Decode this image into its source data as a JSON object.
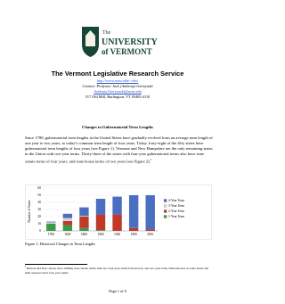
{
  "logo": {
    "line1": "The",
    "line2": "UNIVERSITY",
    "line3": "of VERMONT"
  },
  "header": {
    "title": "The Vermont Legislative Research Service",
    "url": "http://www.uvm.edu/~vlrs/",
    "contact": "Contact: Professor Jack (Anthony) Gierzynski",
    "email": "Anthony.Gierzynski@uvm.edu",
    "address": "517 Old Mill, Burlington, VT 05405-4110"
  },
  "heading": "Changes in Gubernatorial Term Lengths",
  "paragraph": "Since 1780, gubernatorial term lengths in the United States have gradually evolved from an average term length of one year to two years, to today's common term length of four years. Today, forty-eight of the fifty states have gubernatorial term lengths of four years (see Figure 1). Vermont and New Hampshire are the only remaining states in the Union with two-year terms. Thirty-three of the states with four-year gubernatorial terms also have state senate terms of four years, and state house terms of two years (see Figure 2).",
  "paragraph_note": "1",
  "caption": "Figure 1: Historical Changes in Term Lengths",
  "footnote": {
    "marker": "1",
    "text": "Illinois and New Jersey have shifting state senate terms with two four-year terms followed by one two-year term, Nebraska has no state house but their senators have four year terms."
  },
  "page_number": "Page 1 of 6",
  "chart_data": {
    "type": "stacked_bar",
    "y_label": "Number of States",
    "categories": [
      "1780",
      "1820",
      "1860",
      "1900",
      "1940",
      "1980",
      "2016"
    ],
    "series": [
      {
        "name": "4-Year Term",
        "color": "#4a6fc0",
        "values": [
          1,
          6,
          12,
          22,
          25,
          46,
          48
        ]
      },
      {
        "name": "3-Year Term",
        "color": "#d6d6d6",
        "values": [
          2,
          4,
          1,
          0,
          0,
          0,
          0
        ]
      },
      {
        "name": "2-Year Term",
        "color": "#c0392b",
        "values": [
          0,
          6,
          16,
          22,
          23,
          4,
          2
        ]
      },
      {
        "name": "1-Year Term",
        "color": "#3a9a4a",
        "values": [
          10,
          8,
          4,
          1,
          0,
          0,
          0
        ]
      }
    ],
    "ylim": [
      0,
      60
    ],
    "yticks": [
      0,
      10,
      20,
      30,
      40,
      50,
      60
    ],
    "grid": true,
    "legend": "right"
  }
}
